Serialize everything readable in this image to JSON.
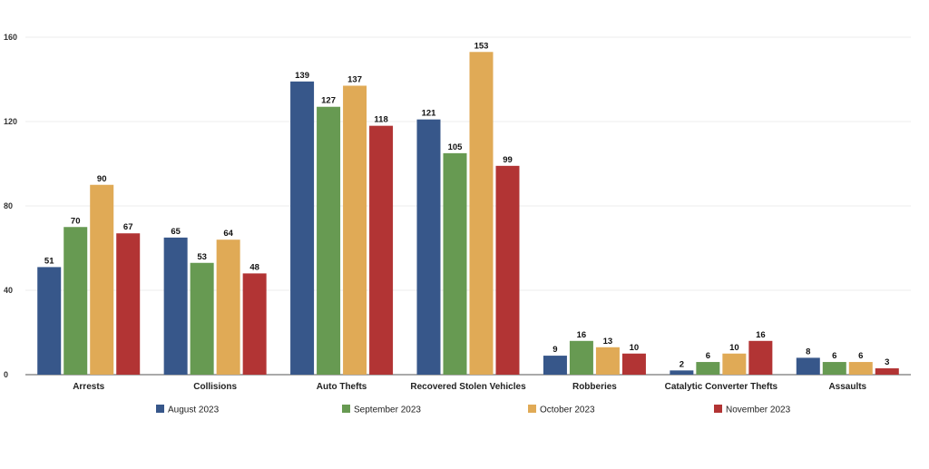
{
  "chart_data": {
    "type": "bar",
    "categories": [
      "Arrests",
      "Collisions",
      "Auto Thefts",
      "Recovered Stolen Vehicles",
      "Robberies",
      "Catalytic Converter Thefts",
      "Assaults"
    ],
    "series": [
      {
        "name": "August 2023",
        "color": "#37578a",
        "values": [
          51,
          65,
          139,
          121,
          9,
          2,
          8
        ]
      },
      {
        "name": "September 2023",
        "color": "#679a52",
        "values": [
          70,
          53,
          127,
          105,
          16,
          6,
          6
        ]
      },
      {
        "name": "October 2023",
        "color": "#e0aa56",
        "values": [
          90,
          64,
          137,
          153,
          13,
          10,
          6
        ]
      },
      {
        "name": "November 2023",
        "color": "#b23434",
        "values": [
          67,
          48,
          118,
          99,
          10,
          16,
          3
        ]
      }
    ],
    "ylim": [
      0,
      160
    ],
    "yticks": [
      0,
      40,
      80,
      120,
      160
    ],
    "grid": true,
    "legend": "bottom"
  }
}
